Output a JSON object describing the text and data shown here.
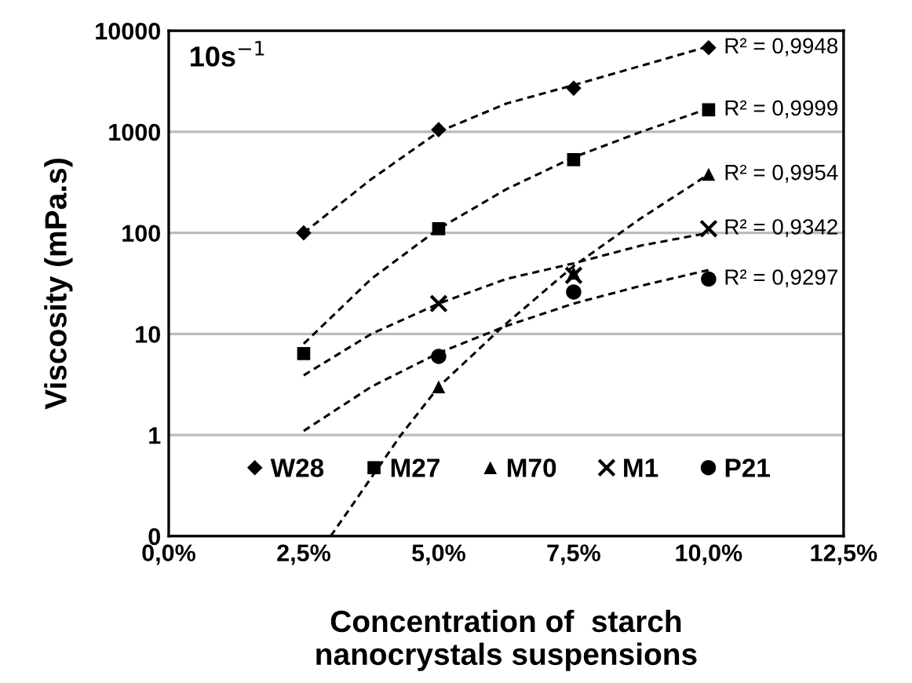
{
  "chart_data": {
    "type": "scatter",
    "xlabel": "Concentration of  starch\nnanocrystals suspensions",
    "ylabel": "Viscosity (mPa.s)",
    "log": "y",
    "grid": "y",
    "legend": "bottom",
    "xlim": [
      0,
      12.5
    ],
    "xticks": [
      {
        "value": 0,
        "label": "0,0%"
      },
      {
        "value": 2.5,
        "label": "2,5%"
      },
      {
        "value": 5,
        "label": "5,0%"
      },
      {
        "value": 7.5,
        "label": "7,5%"
      },
      {
        "value": 10,
        "label": "10,0%"
      },
      {
        "value": 12.5,
        "label": "12,5%"
      }
    ],
    "ylim": [
      0.1,
      10000
    ],
    "yticks": [
      {
        "value": 0.1,
        "label": "0"
      },
      1,
      10,
      100,
      1000,
      10000
    ],
    "series": [
      {
        "name": "W28",
        "color": "#000000",
        "marker": "diamond",
        "x": [
          2.5,
          5,
          7.5,
          10
        ],
        "values": [
          100,
          1050,
          2700,
          6800
        ]
      },
      {
        "name": "M27",
        "color": "#000000",
        "marker": "square",
        "x": [
          2.5,
          5,
          7.5,
          10
        ],
        "values": [
          6.4,
          110,
          530,
          1650
        ]
      },
      {
        "name": "M70",
        "color": "#000000",
        "marker": "triangle",
        "x": [
          5,
          7.5,
          10
        ],
        "values": [
          3,
          40,
          380
        ]
      },
      {
        "name": "M1",
        "color": "#000000",
        "marker": "cross",
        "x": [
          5,
          7.5,
          10
        ],
        "values": [
          20,
          38,
          110
        ]
      },
      {
        "name": "P21",
        "color": "#000000",
        "marker": "circle",
        "x": [
          5,
          7.5,
          10
        ],
        "values": [
          6,
          26,
          35
        ]
      },
      {
        "type": "line",
        "color": "#000000",
        "line_style": "dashed",
        "x": [
          2.5,
          3.75,
          5,
          6.25,
          7.5,
          8.75,
          10
        ],
        "values": [
          100,
          340,
          1000,
          1900,
          2900,
          4500,
          7000
        ]
      },
      {
        "type": "line",
        "color": "#000000",
        "line_style": "dashed",
        "x": [
          2.5,
          3.75,
          5,
          6.25,
          7.5,
          8.75,
          10
        ],
        "values": [
          8,
          35,
          110,
          270,
          560,
          1000,
          1700
        ]
      },
      {
        "type": "line",
        "color": "#000000",
        "line_style": "dashed",
        "x": [
          3.0,
          4.3,
          5,
          6.2,
          7.5,
          8.75,
          10
        ],
        "values": [
          0.1,
          1,
          3,
          12,
          47,
          140,
          380
        ]
      },
      {
        "type": "line",
        "color": "#000000",
        "line_style": "dashed",
        "x": [
          2.5,
          3.75,
          5,
          6.25,
          7.5,
          8.75,
          10
        ],
        "values": [
          3.9,
          10,
          20,
          35,
          50,
          75,
          100
        ]
      },
      {
        "type": "line",
        "color": "#000000",
        "line_style": "dashed",
        "x": [
          2.5,
          3.75,
          5,
          6.25,
          7.5,
          8.75,
          10
        ],
        "values": [
          1.1,
          3,
          6.5,
          12,
          20,
          30,
          43
        ]
      }
    ],
    "annotations": [
      "10s$^{−1}$",
      "R² = 0,9948",
      "R² = 0,9999",
      "R² = 0,9954",
      "R² = 0,9342",
      "R² = 0,9297"
    ]
  }
}
